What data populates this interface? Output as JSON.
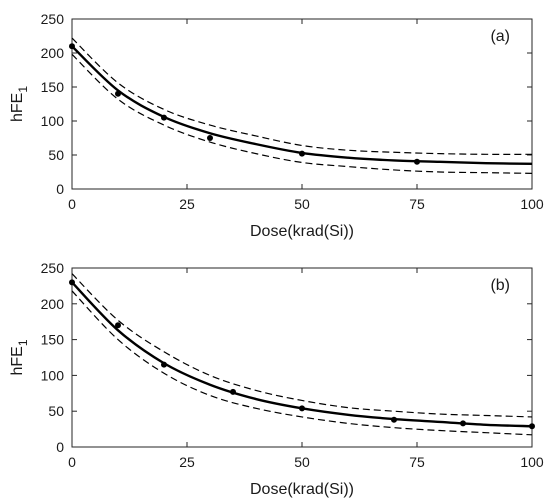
{
  "chart_data": [
    {
      "type": "line",
      "panel_label": "(a)",
      "xlabel": "Dose(krad(Si))",
      "ylabel": "hFE",
      "ylabel_subscript": "1",
      "xlim": [
        0,
        100
      ],
      "ylim": [
        0,
        250
      ],
      "xticks": [
        0,
        25,
        50,
        75,
        100
      ],
      "yticks": [
        0,
        50,
        100,
        150,
        200,
        250
      ],
      "points": [
        {
          "x": 0,
          "y": 210
        },
        {
          "x": 10,
          "y": 140
        },
        {
          "x": 20,
          "y": 105
        },
        {
          "x": 30,
          "y": 75
        },
        {
          "x": 50,
          "y": 52
        },
        {
          "x": 75,
          "y": 40
        }
      ],
      "series": [
        {
          "style": "solid",
          "x": [
            0,
            10,
            20,
            30,
            40,
            50,
            60,
            70,
            80,
            90,
            100
          ],
          "values": [
            210,
            145,
            106,
            82,
            66,
            53,
            46,
            42,
            40,
            38,
            37
          ]
        },
        {
          "style": "dashed",
          "x": [
            0,
            10,
            20,
            30,
            40,
            50,
            60,
            70,
            80,
            90,
            100
          ],
          "values": [
            222,
            156,
            117,
            94,
            78,
            64,
            57,
            54,
            52,
            51,
            51
          ]
        },
        {
          "style": "dashed",
          "x": [
            0,
            10,
            20,
            30,
            40,
            50,
            60,
            70,
            80,
            90,
            100
          ],
          "values": [
            198,
            132,
            94,
            69,
            52,
            39,
            33,
            28,
            25,
            24,
            23
          ]
        }
      ]
    },
    {
      "type": "line",
      "panel_label": "(b)",
      "xlabel": "Dose(krad(Si))",
      "ylabel": "hFE",
      "ylabel_subscript": "1",
      "xlim": [
        0,
        100
      ],
      "ylim": [
        0,
        250
      ],
      "xticks": [
        0,
        25,
        50,
        75,
        100
      ],
      "yticks": [
        0,
        50,
        100,
        150,
        200,
        250
      ],
      "points": [
        {
          "x": 0,
          "y": 230
        },
        {
          "x": 10,
          "y": 170
        },
        {
          "x": 20,
          "y": 115
        },
        {
          "x": 35,
          "y": 77
        },
        {
          "x": 50,
          "y": 54
        },
        {
          "x": 70,
          "y": 38
        },
        {
          "x": 85,
          "y": 33
        },
        {
          "x": 100,
          "y": 29
        }
      ],
      "series": [
        {
          "style": "solid",
          "x": [
            0,
            10,
            20,
            30,
            40,
            50,
            60,
            70,
            80,
            90,
            100
          ],
          "values": [
            230,
            163,
            117,
            87,
            67,
            54,
            45,
            39,
            35,
            31,
            29
          ]
        },
        {
          "style": "dashed",
          "x": [
            0,
            10,
            20,
            30,
            40,
            50,
            60,
            70,
            80,
            90,
            100
          ],
          "values": [
            242,
            177,
            133,
            100,
            79,
            65,
            55,
            50,
            46,
            44,
            42
          ]
        },
        {
          "style": "dashed",
          "x": [
            0,
            10,
            20,
            30,
            40,
            50,
            60,
            70,
            80,
            90,
            100
          ],
          "values": [
            218,
            150,
            103,
            72,
            54,
            42,
            33,
            27,
            23,
            20,
            17
          ]
        }
      ]
    }
  ]
}
